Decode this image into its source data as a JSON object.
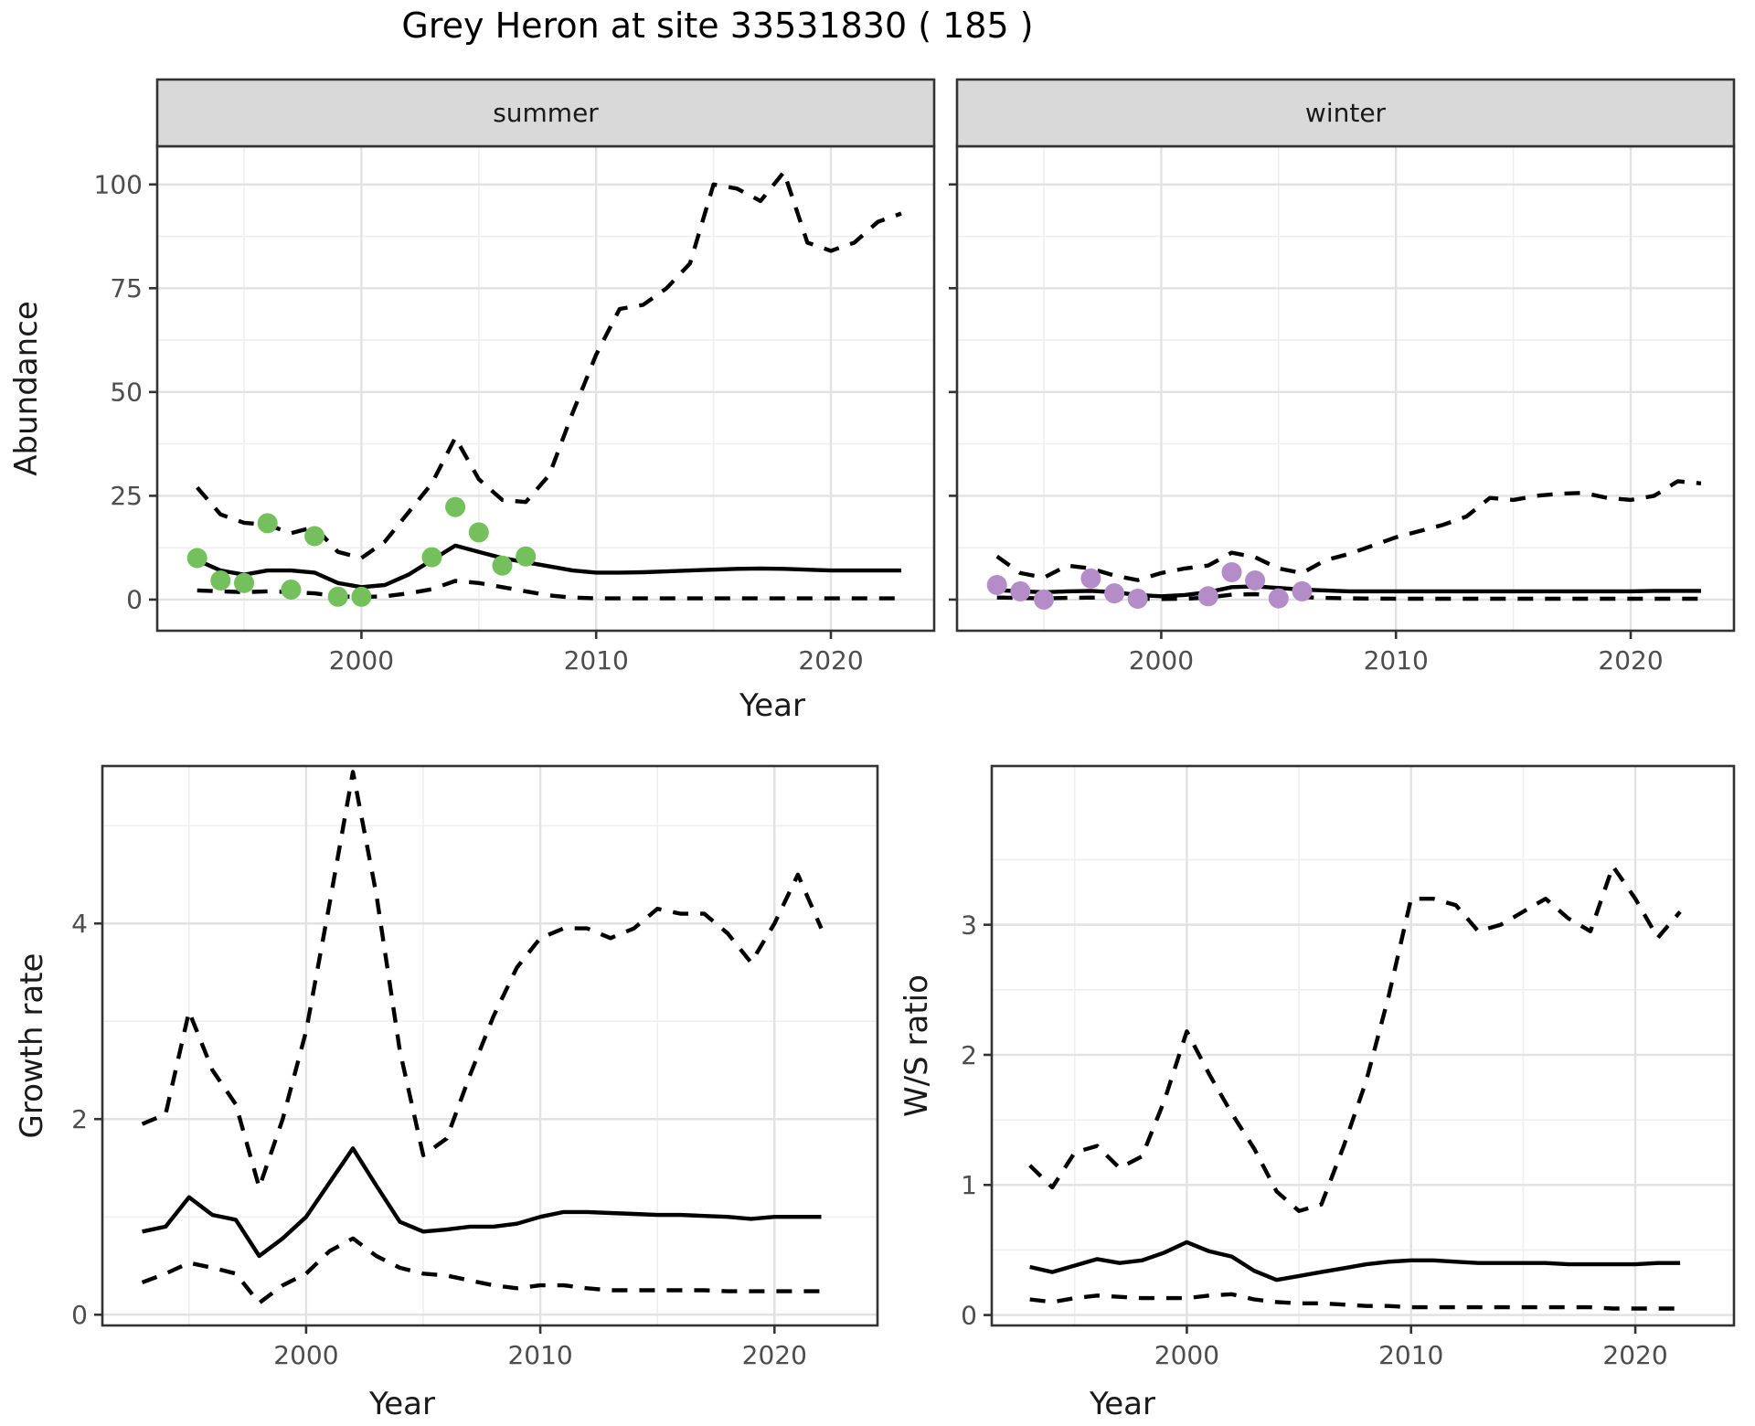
{
  "chart_data": {
    "type": "line",
    "title": "Grey Heron at site 33531830 ( 185 )",
    "colors": {
      "line": "#000000",
      "summer_points": "#74C05C",
      "winter_points": "#B48CC8",
      "strip_bg": "#D9D9D9",
      "panel_border": "#333333",
      "grid_major": "#E2E2E2",
      "grid_minor": "#EFEFEF",
      "tick_text": "#4D4D4D",
      "title_text": "#1A1A1A"
    },
    "panels": [
      {
        "id": "summer",
        "strip": "summer",
        "ylabel": "Abundance",
        "xlabel": "Year",
        "xlim": [
          1991.3,
          2024.4
        ],
        "ylim": [
          -7.5,
          109.2
        ],
        "xticks": [
          2000,
          2010,
          2020
        ],
        "yticks": [
          0,
          25,
          50,
          75,
          100
        ],
        "xticks_minor": [
          1995,
          2005,
          2015
        ],
        "yticks_minor": [
          12.5,
          37.5,
          62.5,
          87.5
        ],
        "years": [
          1993,
          1994,
          1995,
          1996,
          1997,
          1998,
          1999,
          2000,
          2001,
          2002,
          2003,
          2004,
          2005,
          2006,
          2007,
          2008,
          2009,
          2010,
          2011,
          2012,
          2013,
          2014,
          2015,
          2016,
          2017,
          2018,
          2019,
          2020,
          2021,
          2022,
          2023
        ],
        "series": [
          {
            "name": "credible-upper",
            "type": "line",
            "dash": true,
            "y": [
              27,
              20.5,
              18.5,
              18,
              16,
              17.5,
              11.5,
              10,
              14,
              21,
              28,
              39,
              29,
              24,
              23.5,
              30,
              45,
              59,
              70,
              71,
              75,
              81,
              100,
              99,
              96,
              103,
              86,
              84,
              86,
              91,
              93
            ]
          },
          {
            "name": "fit",
            "type": "line",
            "dash": false,
            "y": [
              9.5,
              7,
              6,
              7,
              7,
              6.5,
              4,
              3,
              3.5,
              6,
              9.5,
              13,
              11.5,
              10,
              9,
              8,
              7,
              6.5,
              6.5,
              6.6,
              6.8,
              7,
              7.2,
              7.4,
              7.5,
              7.4,
              7.2,
              7,
              7,
              7,
              7
            ]
          },
          {
            "name": "credible-lower",
            "type": "line",
            "dash": true,
            "y": [
              2.2,
              2,
              1.8,
              2,
              1.8,
              1.5,
              0.8,
              0.6,
              0.8,
              1.5,
              2.5,
              4.5,
              4,
              3,
              2,
              1,
              0.5,
              0.3,
              0.3,
              0.3,
              0.3,
              0.3,
              0.3,
              0.3,
              0.3,
              0.3,
              0.3,
              0.3,
              0.3,
              0.3,
              0.3
            ]
          },
          {
            "name": "observations",
            "type": "points",
            "color": "#74C05C",
            "x": [
              1993,
              1994,
              1995,
              1996,
              1997,
              1998,
              1999,
              2000,
              2003,
              2004,
              2005,
              2006,
              2007
            ],
            "y": [
              10,
              4.6,
              4,
              18.4,
              2.4,
              15.3,
              0.7,
              0.7,
              10.2,
              22.3,
              16.2,
              8.2,
              10.4
            ]
          }
        ]
      },
      {
        "id": "winter",
        "strip": "winter",
        "ylabel": null,
        "xlabel": null,
        "xlim": [
          1991.3,
          2024.4
        ],
        "ylim": [
          -7.5,
          109.2
        ],
        "xticks": [
          2000,
          2010,
          2020
        ],
        "yticks": [
          0,
          25,
          50,
          75,
          100
        ],
        "xticks_minor": [
          1995,
          2005,
          2015
        ],
        "yticks_minor": [
          12.5,
          37.5,
          62.5,
          87.5
        ],
        "hide_ytick_labels": true,
        "years": [
          1993,
          1994,
          1995,
          1996,
          1997,
          1998,
          1999,
          2000,
          2001,
          2002,
          2003,
          2004,
          2005,
          2006,
          2007,
          2008,
          2009,
          2010,
          2011,
          2012,
          2013,
          2014,
          2015,
          2016,
          2017,
          2018,
          2019,
          2020,
          2021,
          2022,
          2023
        ],
        "series": [
          {
            "name": "credible-upper",
            "type": "line",
            "dash": true,
            "y": [
              10.4,
              6.4,
              5.3,
              8.2,
              7.5,
              5.8,
              4.7,
              6.4,
              7.5,
              8.2,
              11.3,
              10.2,
              7.5,
              6.4,
              9.5,
              11,
              13,
              15,
              16.5,
              18,
              20,
              24.5,
              24,
              25,
              25.5,
              25.7,
              24.5,
              24,
              25,
              28.5,
              28
            ]
          },
          {
            "name": "fit",
            "type": "line",
            "dash": false,
            "y": [
              2.3,
              2,
              1.8,
              2,
              2.1,
              1.8,
              1.1,
              0.8,
              1.1,
              1.8,
              3,
              3.2,
              2.8,
              2.4,
              2.2,
              2,
              2,
              2,
              2,
              2,
              2,
              2,
              2,
              2,
              2,
              2,
              2,
              2,
              2.1,
              2.1,
              2.1
            ]
          },
          {
            "name": "credible-lower",
            "type": "line",
            "dash": true,
            "y": [
              0.5,
              0.4,
              0.3,
              0.4,
              0.5,
              0.4,
              0.2,
              0.15,
              0.2,
              0.5,
              1.2,
              1.3,
              0.9,
              0.6,
              0.4,
              0.3,
              0.25,
              0.2,
              0.2,
              0.2,
              0.2,
              0.2,
              0.2,
              0.2,
              0.2,
              0.2,
              0.2,
              0.2,
              0.2,
              0.2,
              0.2
            ]
          },
          {
            "name": "observations",
            "type": "points",
            "color": "#B48CC8",
            "x": [
              1993,
              1994,
              1995,
              1997,
              1998,
              1999,
              2002,
              2003,
              2004,
              2005,
              2006
            ],
            "y": [
              3.5,
              2,
              0,
              5.1,
              1.5,
              0.2,
              0.8,
              6.6,
              4.6,
              0.3,
              2
            ]
          }
        ]
      },
      {
        "id": "growth_rate",
        "strip": null,
        "ylabel": "Growth rate",
        "xlabel": "Year",
        "xlim": [
          1991.3,
          2024.4
        ],
        "ylim": [
          -0.11,
          5.61
        ],
        "xticks": [
          2000,
          2010,
          2020
        ],
        "yticks": [
          0,
          2,
          4
        ],
        "xticks_minor": [
          1995,
          2005,
          2015
        ],
        "yticks_minor": [
          1,
          3,
          5
        ],
        "years": [
          1993,
          1994,
          1995,
          1996,
          1997,
          1998,
          1999,
          2000,
          2001,
          2002,
          2003,
          2004,
          2005,
          2006,
          2007,
          2008,
          2009,
          2010,
          2011,
          2012,
          2013,
          2014,
          2015,
          2016,
          2017,
          2018,
          2019,
          2020,
          2021,
          2022
        ],
        "series": [
          {
            "name": "credible-upper",
            "type": "line",
            "dash": true,
            "y": [
              1.95,
              2.05,
              3.1,
              2.5,
              2.15,
              1.3,
              2,
              2.9,
              4.2,
              5.55,
              4.3,
              2.7,
              1.63,
              1.8,
              2.45,
              3.05,
              3.55,
              3.85,
              3.95,
              3.95,
              3.85,
              3.95,
              4.15,
              4.1,
              4.1,
              3.9,
              3.6,
              4,
              4.5,
              3.95
            ]
          },
          {
            "name": "fit",
            "type": "line",
            "dash": false,
            "y": [
              0.85,
              0.9,
              1.2,
              1.02,
              0.97,
              0.6,
              0.78,
              1,
              1.35,
              1.7,
              1.32,
              0.95,
              0.85,
              0.87,
              0.9,
              0.9,
              0.93,
              1,
              1.05,
              1.05,
              1.04,
              1.03,
              1.02,
              1.02,
              1.01,
              1,
              0.98,
              1,
              1,
              1
            ]
          },
          {
            "name": "credible-lower",
            "type": "line",
            "dash": true,
            "y": [
              0.33,
              0.42,
              0.53,
              0.48,
              0.42,
              0.12,
              0.3,
              0.42,
              0.65,
              0.78,
              0.6,
              0.48,
              0.42,
              0.4,
              0.35,
              0.3,
              0.27,
              0.3,
              0.3,
              0.27,
              0.25,
              0.25,
              0.25,
              0.25,
              0.25,
              0.24,
              0.24,
              0.24,
              0.24,
              0.24
            ]
          }
        ]
      },
      {
        "id": "ws_ratio",
        "strip": null,
        "ylabel": "W/S ratio",
        "xlabel": "Year",
        "xlim": [
          1991.3,
          2024.4
        ],
        "ylim": [
          -0.08,
          4.22
        ],
        "xticks": [
          2000,
          2010,
          2020
        ],
        "yticks": [
          0,
          1,
          2,
          3
        ],
        "xticks_minor": [
          1995,
          2005,
          2015
        ],
        "yticks_minor": [
          0.5,
          1.5,
          2.5,
          3.5
        ],
        "years": [
          1993,
          1994,
          1995,
          1996,
          1997,
          1998,
          1999,
          2000,
          2001,
          2002,
          2003,
          2004,
          2005,
          2006,
          2007,
          2008,
          2009,
          2010,
          2011,
          2012,
          2013,
          2014,
          2015,
          2016,
          2017,
          2018,
          2019,
          2020,
          2021,
          2022
        ],
        "series": [
          {
            "name": "credible-upper",
            "type": "line",
            "dash": true,
            "y": [
              1.15,
              0.98,
              1.25,
              1.3,
              1.13,
              1.22,
              1.65,
              2.18,
              1.85,
              1.55,
              1.28,
              0.95,
              0.8,
              0.85,
              1.3,
              1.8,
              2.45,
              3.2,
              3.2,
              3.15,
              2.95,
              3,
              3.1,
              3.2,
              3.05,
              2.95,
              3.45,
              3.2,
              2.9,
              3.1
            ]
          },
          {
            "name": "fit",
            "type": "line",
            "dash": false,
            "y": [
              0.37,
              0.33,
              0.38,
              0.43,
              0.4,
              0.42,
              0.48,
              0.56,
              0.49,
              0.45,
              0.34,
              0.27,
              0.3,
              0.33,
              0.36,
              0.39,
              0.41,
              0.42,
              0.42,
              0.41,
              0.4,
              0.4,
              0.4,
              0.4,
              0.39,
              0.39,
              0.39,
              0.39,
              0.4,
              0.4
            ]
          },
          {
            "name": "credible-lower",
            "type": "line",
            "dash": true,
            "y": [
              0.12,
              0.1,
              0.13,
              0.15,
              0.14,
              0.13,
              0.13,
              0.13,
              0.15,
              0.16,
              0.12,
              0.1,
              0.09,
              0.09,
              0.08,
              0.07,
              0.07,
              0.06,
              0.06,
              0.06,
              0.06,
              0.06,
              0.06,
              0.06,
              0.06,
              0.06,
              0.05,
              0.05,
              0.05,
              0.05
            ]
          }
        ]
      }
    ]
  }
}
